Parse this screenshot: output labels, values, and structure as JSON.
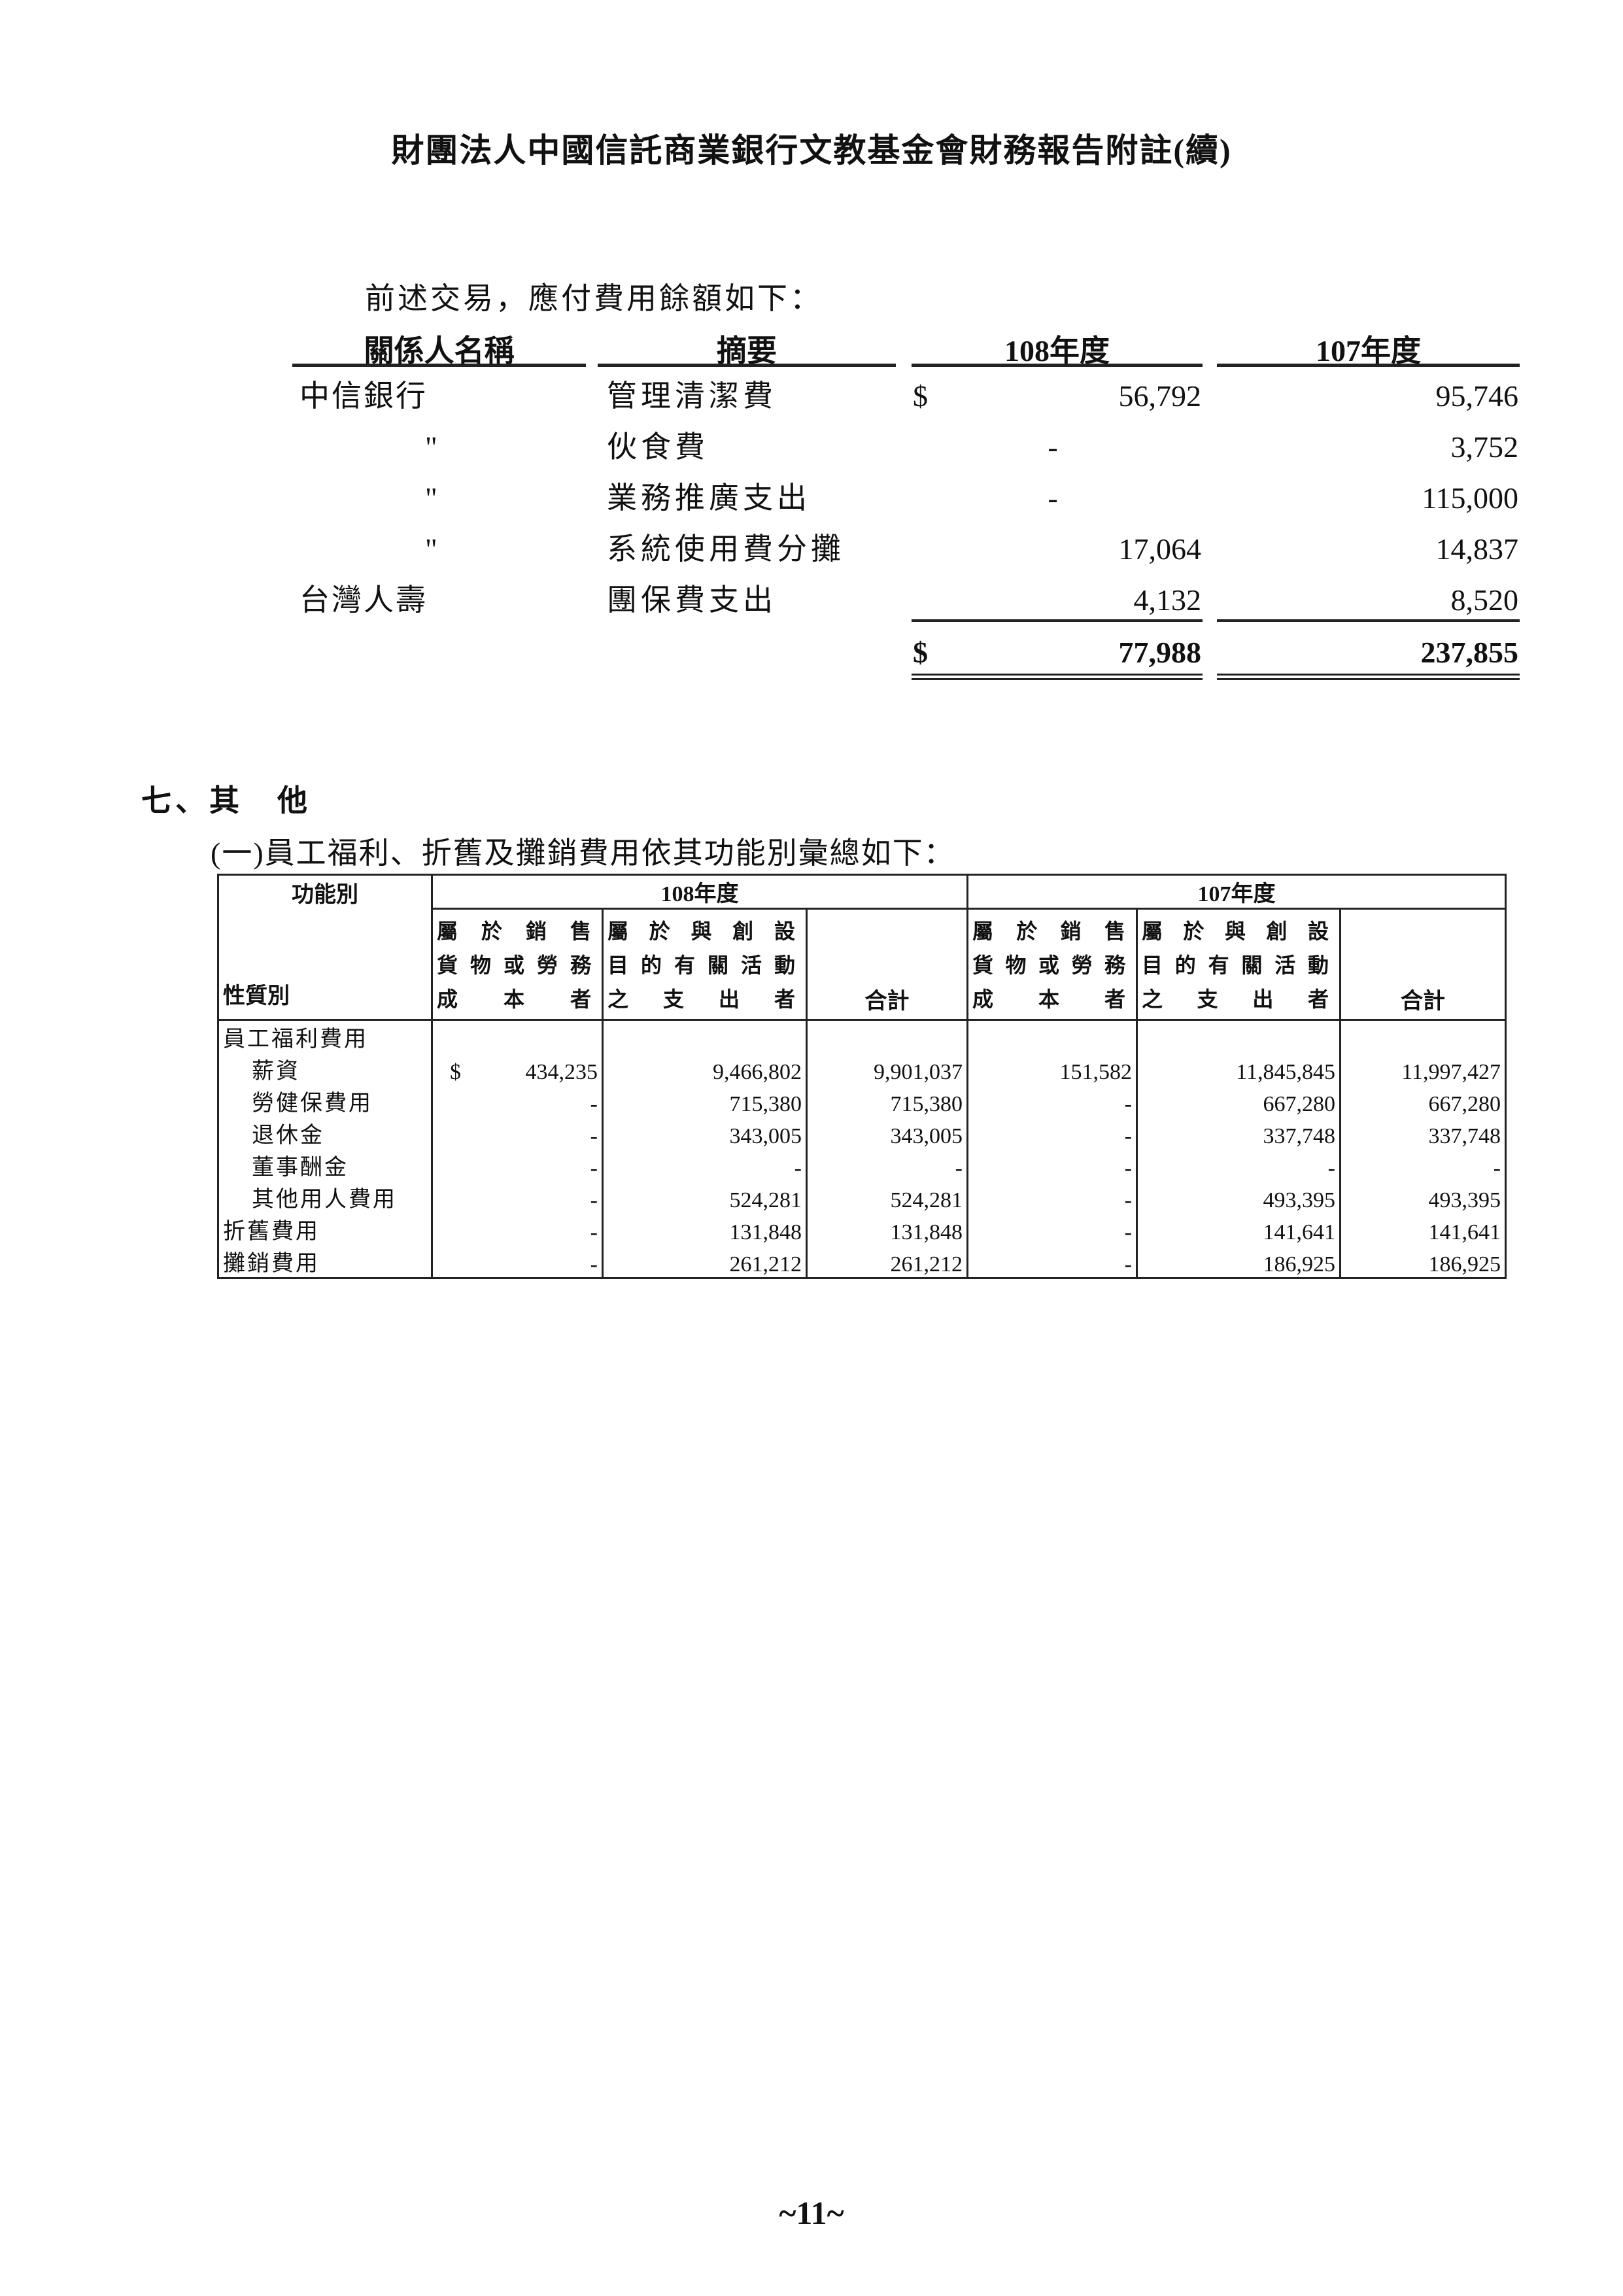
{
  "title": "財團法人中國信託商業銀行文教基金會財務報告附註(續)",
  "payables": {
    "intro": "前述交易，應付費用餘額如下：",
    "headers": [
      "關係人名稱",
      "摘要",
      "108年度",
      "107年度"
    ],
    "currency": "$",
    "rows": [
      {
        "party": "中信銀行",
        "desc": "管理清潔費",
        "y108": "56,792",
        "y107": "95,746",
        "dollar": "$"
      },
      {
        "party": "\"",
        "desc": "伙食費",
        "y108": "-",
        "y107": "3,752"
      },
      {
        "party": "\"",
        "desc": "業務推廣支出",
        "y108": "-",
        "y107": "115,000"
      },
      {
        "party": "\"",
        "desc": "系統使用費分攤",
        "y108": "17,064",
        "y107": "14,837"
      },
      {
        "party": "台灣人壽",
        "desc": "團保費支出",
        "y108": "4,132",
        "y107": "8,520"
      }
    ],
    "total": {
      "dollar": "$",
      "y108": "77,988",
      "y107": "237,855"
    }
  },
  "section": {
    "heading": "七、其　他",
    "subheading": "(一)員工福利、折舊及攤銷費用依其功能別彙總如下："
  },
  "expense_table": {
    "corner_top": "功能別",
    "corner_bottom": "性質別",
    "years": [
      "108年度",
      "107年度"
    ],
    "col_headers": [
      [
        "屬於銷售",
        "貨物或勞務",
        "成本者"
      ],
      [
        "屬於與創設",
        "目的有關活動",
        "之支出者"
      ],
      "合計"
    ],
    "group_label": "員工福利費用",
    "rows": [
      {
        "label": "薪資",
        "indent": true,
        "dollar": "$",
        "v": [
          "434,235",
          "9,466,802",
          "9,901,037",
          "151,582",
          "11,845,845",
          "11,997,427"
        ]
      },
      {
        "label": "勞健保費用",
        "indent": true,
        "v": [
          "-",
          "715,380",
          "715,380",
          "-",
          "667,280",
          "667,280"
        ]
      },
      {
        "label": "退休金",
        "indent": true,
        "v": [
          "-",
          "343,005",
          "343,005",
          "-",
          "337,748",
          "337,748"
        ]
      },
      {
        "label": "董事酬金",
        "indent": true,
        "v": [
          "-",
          "-",
          "-",
          "-",
          "-",
          "-"
        ]
      },
      {
        "label": "其他用人費用",
        "indent": true,
        "v": [
          "-",
          "524,281",
          "524,281",
          "-",
          "493,395",
          "493,395"
        ]
      },
      {
        "label": "折舊費用",
        "indent": false,
        "v": [
          "-",
          "131,848",
          "131,848",
          "-",
          "141,641",
          "141,641"
        ]
      },
      {
        "label": "攤銷費用",
        "indent": false,
        "v": [
          "-",
          "261,212",
          "261,212",
          "-",
          "186,925",
          "186,925"
        ]
      }
    ]
  },
  "page_number": "~11~"
}
